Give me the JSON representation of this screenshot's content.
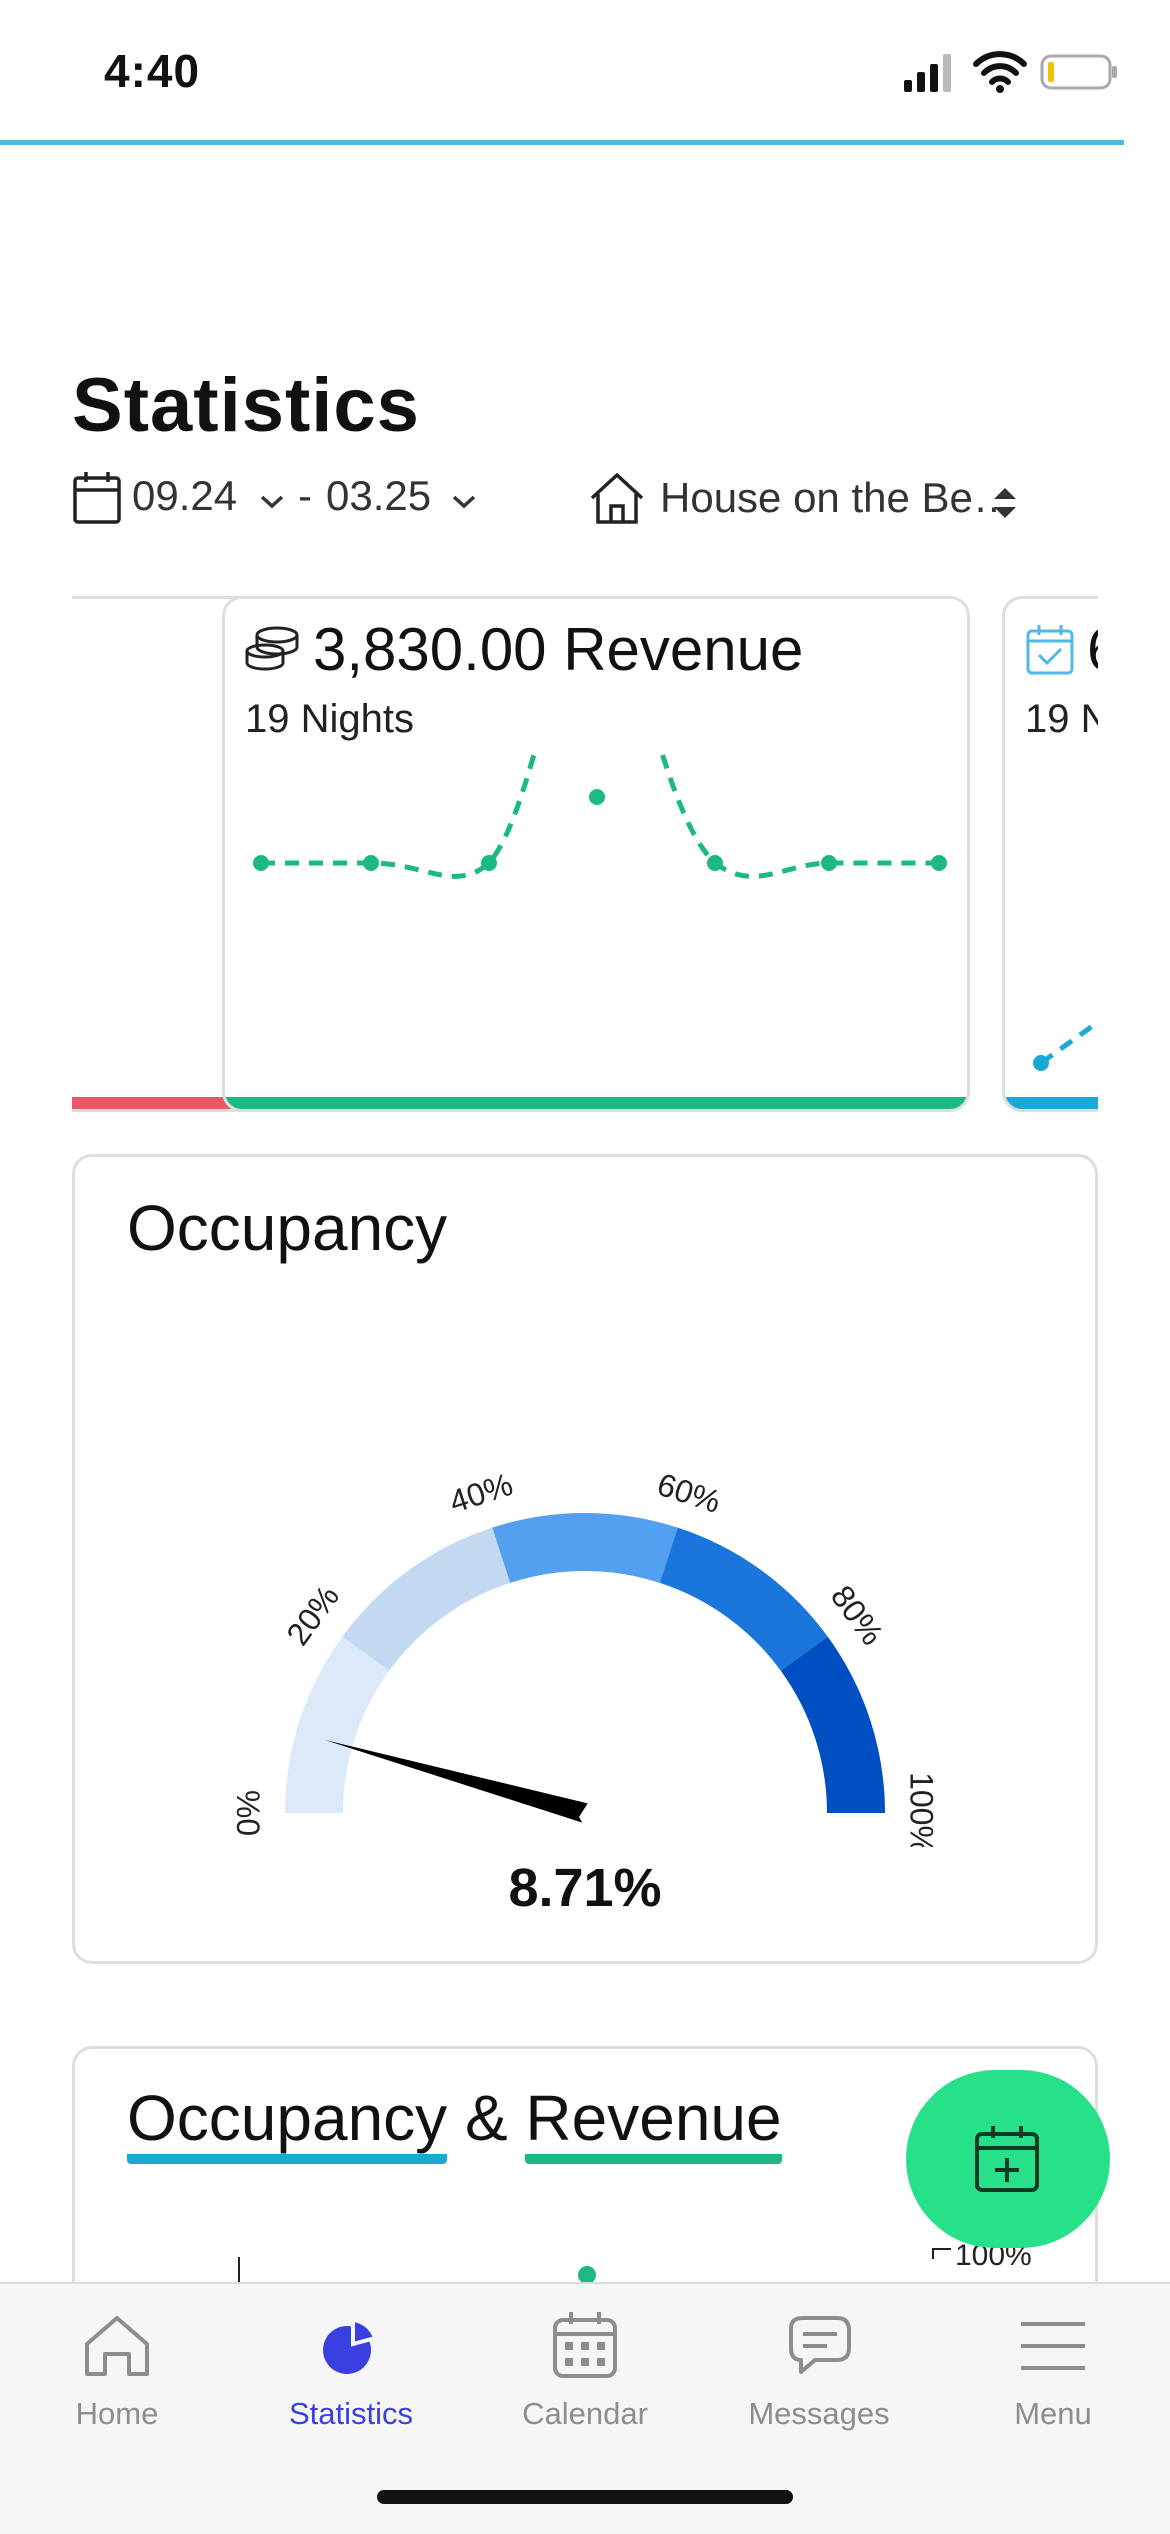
{
  "status_bar": {
    "time": "4:40"
  },
  "page": {
    "title": "Statistics"
  },
  "filters": {
    "date_from": "09.24",
    "date_to": "03.25",
    "date_separator": "-",
    "property": "House on the Be…"
  },
  "revenue_card": {
    "value_label": "3,830.00 Revenue",
    "sub_label": "19 Nights",
    "accent": "#1db884"
  },
  "right_card": {
    "value_label": "6",
    "sub_label": "19 N",
    "accent": "#1aa9d4"
  },
  "left_card": {
    "accent": "#e85a66"
  },
  "occupancy": {
    "title": "Occupancy",
    "value_label": "8.71%",
    "value": 8.71,
    "ticks": [
      "0%",
      "20%",
      "40%",
      "60%",
      "80%",
      "100%"
    ],
    "band_colors": [
      "#dce9f8",
      "#c3d9f2",
      "#539ff0",
      "#1b76dc",
      "#004fc2"
    ]
  },
  "occ_revenue": {
    "title_a": "Occupancy",
    "title_amp": "&",
    "title_b": "Revenue",
    "tick_right": "100%",
    "color_a": "#1aa9d4",
    "color_b": "#1db884"
  },
  "tabs": [
    {
      "label": "Home",
      "icon": "home-icon",
      "active": false
    },
    {
      "label": "Statistics",
      "icon": "pie-chart-icon",
      "active": true
    },
    {
      "label": "Calendar",
      "icon": "calendar-icon",
      "active": false
    },
    {
      "label": "Messages",
      "icon": "messages-icon",
      "active": false
    },
    {
      "label": "Menu",
      "icon": "menu-icon",
      "active": false
    }
  ],
  "colors": {
    "active_tab": "#3a3fe0",
    "fab": "#27e08a"
  }
}
